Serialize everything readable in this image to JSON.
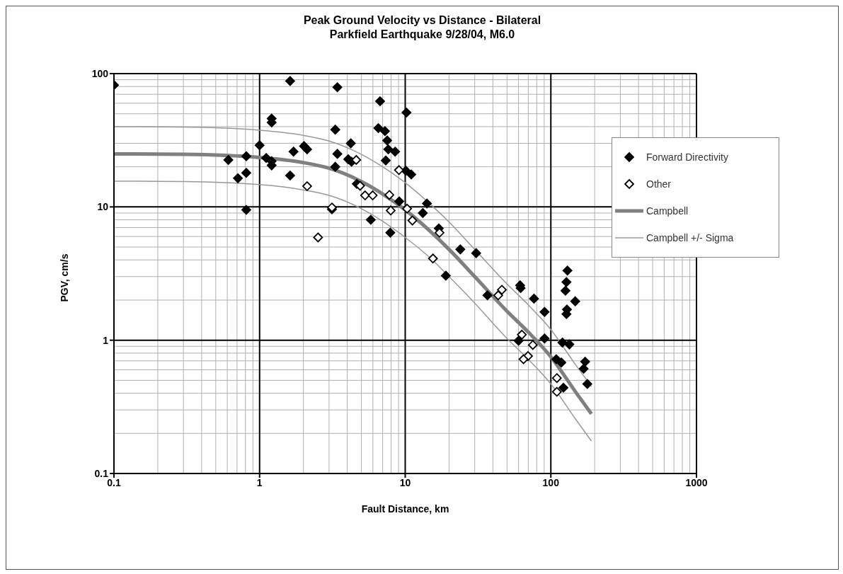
{
  "chart_data": {
    "type": "scatter",
    "title": "Peak Ground Velocity vs Distance - Bilateral\nParkfield Earthquake 9/28/04, M6.0",
    "xlabel": "Fault Distance, km",
    "ylabel": "PGV, cm/s",
    "log": "xy",
    "grid": true,
    "legend": "right",
    "xlim": [
      0.1,
      1000
    ],
    "xticks": [
      0.1,
      1,
      10,
      100,
      1000
    ],
    "ylim": [
      0.1,
      100
    ],
    "yticks": [
      0.1,
      1,
      10,
      100
    ],
    "series": [
      {
        "name": "Forward Directivity",
        "marker": "diamond",
        "color": "#000000",
        "x": [
          0.1,
          1.62,
          3.42,
          1.21,
          1.21,
          3.31,
          1.0,
          4.23,
          0.61,
          0.81,
          0.71,
          0.81,
          0.81,
          1.11,
          1.21,
          1.21,
          1.71,
          2.02,
          2.12,
          1.62,
          3.42,
          3.31,
          4.06,
          4.28,
          5.8,
          3.14,
          4.65,
          6.72,
          10.2,
          6.54,
          7.26,
          7.52,
          7.65,
          8.52,
          7.35,
          10.1,
          11.0,
          9.1,
          14.1,
          13.2,
          7.9,
          17.0,
          23.9,
          30.7,
          19.0,
          36.7,
          61.5,
          62,
          76.6,
          90.5,
          130,
          128,
          126,
          147,
          129,
          128,
          60,
          90.5,
          120,
          134,
          109,
          118,
          172,
          168,
          178,
          122
        ],
        "values": [
          82,
          88,
          79,
          46,
          43,
          38,
          29,
          30,
          22.5,
          24,
          16.4,
          18,
          9.5,
          23.3,
          20.5,
          22,
          26,
          28.6,
          27,
          17.2,
          25,
          20,
          22.8,
          21.8,
          8,
          9.6,
          14.9,
          62,
          51,
          39,
          37,
          31.5,
          27,
          26,
          22.3,
          18.7,
          17.5,
          11,
          10.6,
          9,
          6.4,
          6.9,
          4.8,
          4.5,
          3.05,
          2.17,
          2.58,
          2.46,
          2.05,
          1.63,
          3.33,
          2.73,
          2.35,
          1.96,
          1.7,
          1.57,
          0.99,
          1.03,
          0.96,
          0.93,
          0.72,
          0.68,
          0.69,
          0.61,
          0.47,
          0.44
        ]
      },
      {
        "name": "Other",
        "marker": "diamond",
        "color": "#ffffff",
        "x": [
          2.12,
          3.14,
          2.52,
          4.61,
          4.9,
          5.3,
          5.98,
          9.06,
          7.78,
          7.95,
          10.3,
          11.2,
          17.2,
          15.5,
          46.1,
          43.5,
          63.2,
          75.2,
          69.7,
          64.9,
          110,
          110
        ],
        "values": [
          14.3,
          9.9,
          5.9,
          22.5,
          14.4,
          12.2,
          12.2,
          18.9,
          12.3,
          9.4,
          9.7,
          7.9,
          6.4,
          4.1,
          2.39,
          2.17,
          1.1,
          0.92,
          0.76,
          0.72,
          0.52,
          0.41
        ]
      },
      {
        "name": "Campbell",
        "type": "line",
        "marker": "none",
        "color": "#808080",
        "x": [
          0.1,
          0.3,
          1,
          2,
          3,
          5,
          7,
          10,
          15,
          20,
          30,
          50,
          70,
          100,
          150,
          190
        ],
        "values": [
          25,
          24.8,
          23.5,
          21.5,
          19.5,
          15.5,
          12.5,
          9.5,
          6.5,
          4.8,
          3.0,
          1.65,
          1.15,
          0.75,
          0.4,
          0.28
        ]
      },
      {
        "name": "Campbell +/- Sigma",
        "type": "line",
        "marker": "none",
        "color": "#999999",
        "x": [
          0.1,
          0.3,
          1,
          2,
          3,
          5,
          7,
          10,
          15,
          20,
          30,
          50,
          70,
          100,
          150,
          190
        ],
        "values": [
          40,
          39.7,
          37.6,
          34.4,
          31.2,
          24.8,
          20,
          15.2,
          10.4,
          7.7,
          4.8,
          2.64,
          1.84,
          1.2,
          0.64,
          0.45
        ]
      },
      {
        "type": "line",
        "marker": "none",
        "color": "#999999",
        "x": [
          0.1,
          0.3,
          1,
          2,
          3,
          5,
          7,
          10,
          15,
          20,
          30,
          50,
          70,
          100,
          150,
          190
        ],
        "values": [
          15.6,
          15.5,
          14.7,
          13.4,
          12.2,
          9.7,
          7.8,
          5.9,
          4.1,
          3.0,
          1.9,
          1.03,
          0.72,
          0.47,
          0.25,
          0.175
        ]
      }
    ]
  }
}
